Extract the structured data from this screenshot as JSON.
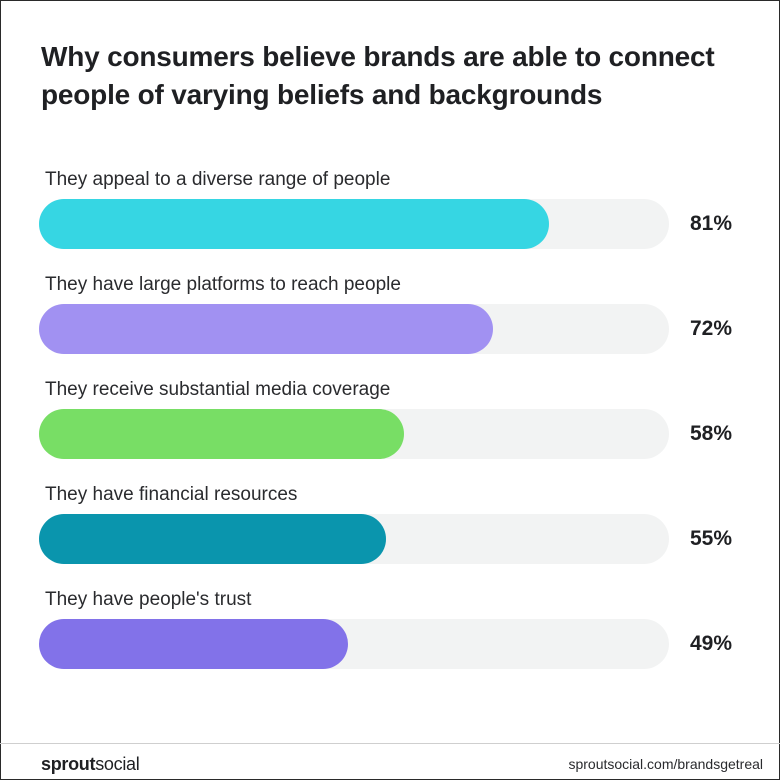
{
  "chart_data": {
    "type": "bar",
    "orientation": "horizontal",
    "title": "Why consumers believe brands are able to connect people of varying beliefs and backgrounds",
    "categories": [
      "They appeal to a diverse range of people",
      "They have large platforms to reach people",
      "They receive substantial media coverage",
      "They have financial resources",
      "They have people's trust"
    ],
    "values": [
      81,
      72,
      58,
      55,
      49
    ],
    "value_labels": [
      "81%",
      "72%",
      "58%",
      "55%",
      "49%"
    ],
    "xlim": [
      0,
      100
    ],
    "colors": [
      "#36d6e3",
      "#a191f2",
      "#78de65",
      "#0a95ad",
      "#8272e9"
    ],
    "track_color": "#f2f3f3",
    "grid": false,
    "legend": "none"
  },
  "footer": {
    "brand_part1": "sprout",
    "brand_part2": "social",
    "url": "sproutsocial.com/brandsgetreal"
  }
}
